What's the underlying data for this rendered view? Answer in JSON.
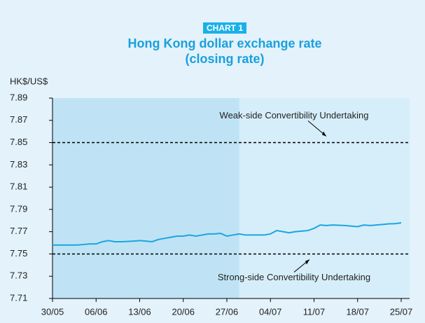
{
  "chart_data": {
    "type": "line",
    "badge": "CHART 1",
    "title": [
      "Hong Kong dollar exchange rate",
      "(closing rate)"
    ],
    "y_label": "HK$/US$",
    "categories": [
      "30/05",
      null,
      null,
      null,
      null,
      null,
      null,
      "06/06",
      null,
      null,
      null,
      null,
      null,
      null,
      "13/06",
      null,
      null,
      null,
      null,
      null,
      null,
      "20/06",
      null,
      null,
      null,
      null,
      null,
      null,
      "27/06",
      null,
      null,
      null,
      null,
      null,
      null,
      "04/07",
      null,
      null,
      null,
      null,
      null,
      null,
      "11/07",
      null,
      null,
      null,
      null,
      null,
      null,
      "18/07",
      null,
      null,
      null,
      null,
      null,
      null,
      "25/07"
    ],
    "series": [
      {
        "name": "HK$/US$",
        "color": "#1aa6e0",
        "values": [
          7.758,
          7.758,
          7.758,
          7.758,
          7.758,
          7.7585,
          7.759,
          7.759,
          7.761,
          7.762,
          7.761,
          7.761,
          7.7612,
          7.7615,
          7.762,
          7.7615,
          7.761,
          7.763,
          7.764,
          7.765,
          7.766,
          7.766,
          7.767,
          7.766,
          7.767,
          7.768,
          7.768,
          7.7685,
          7.766,
          7.767,
          7.768,
          7.767,
          7.767,
          7.767,
          7.767,
          7.768,
          7.771,
          7.77,
          7.769,
          7.77,
          7.7705,
          7.771,
          7.773,
          7.776,
          7.7755,
          7.776,
          7.7758,
          7.7755,
          7.775,
          7.7745,
          7.776,
          7.7755,
          7.776,
          7.7765,
          7.777,
          7.7772,
          7.778
        ]
      }
    ],
    "ylim": [
      7.71,
      7.89
    ],
    "yticks": [
      7.71,
      7.73,
      7.75,
      7.77,
      7.79,
      7.81,
      7.83,
      7.85,
      7.87,
      7.89
    ],
    "reference_lines": [
      {
        "value": 7.85,
        "label": "Weak-side Convertibility Undertaking"
      },
      {
        "value": 7.75,
        "label": "Strong-side Convertibility Undertaking"
      }
    ],
    "shaded_regions": [
      {
        "from": 0,
        "to": 30,
        "color": "#bfe3f5"
      },
      {
        "from": 30,
        "to": 56,
        "color": "#d6eefa"
      }
    ]
  }
}
